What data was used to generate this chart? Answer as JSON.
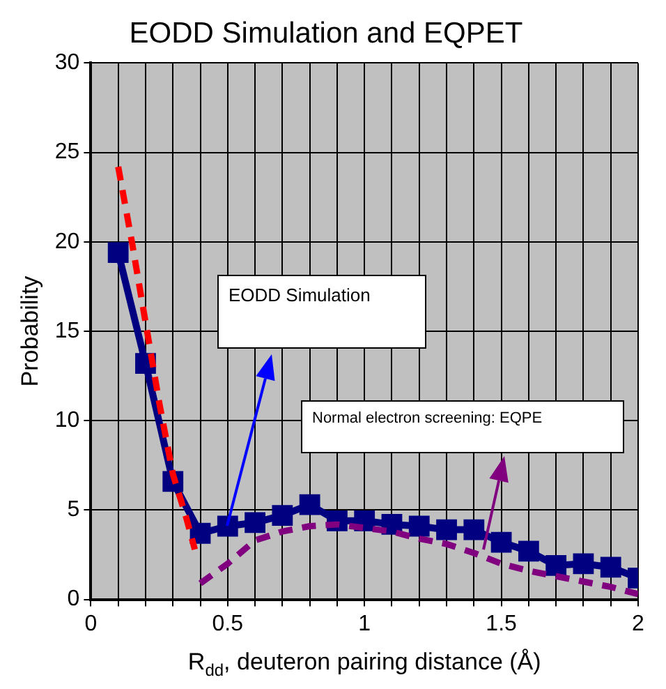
{
  "chart_data": {
    "type": "line",
    "title": "EODD Simulation and EQPET",
    "xlabel": "R$_{dd}$, deuteron pairing distance (Å)",
    "ylabel": "Probability",
    "xlim": [
      0,
      2
    ],
    "ylim": [
      0,
      30
    ],
    "xticks": [
      0,
      {
        "value": 0.1,
        "label": null
      },
      {
        "value": 0.2,
        "label": null
      },
      {
        "value": 0.3,
        "label": null
      },
      {
        "value": 0.4,
        "label": null
      },
      0.5,
      {
        "value": 0.6,
        "label": null
      },
      {
        "value": 0.7,
        "label": null
      },
      {
        "value": 0.8,
        "label": null
      },
      {
        "value": 0.9,
        "label": null
      },
      1,
      {
        "value": 1.1,
        "label": null
      },
      {
        "value": 1.2,
        "label": null
      },
      {
        "value": 1.3,
        "label": null
      },
      {
        "value": 1.4,
        "label": null
      },
      1.5,
      {
        "value": 1.6,
        "label": null
      },
      {
        "value": 1.7,
        "label": null
      },
      {
        "value": 1.8,
        "label": null
      },
      {
        "value": 1.9,
        "label": null
      },
      2
    ],
    "yticks": [
      0,
      5,
      10,
      15,
      20,
      25,
      30
    ],
    "grid": true,
    "legend": false,
    "series": [
      {
        "color": "#ff0000",
        "line_style": "dashed",
        "marker": "none",
        "x": [
          0.1,
          0.15,
          0.2,
          0.25,
          0.3,
          0.35,
          0.38
        ],
        "values": [
          24.2,
          20,
          15.5,
          11,
          7,
          4.5,
          2.8
        ]
      },
      {
        "color": "#800080",
        "line_style": "dashed",
        "marker": "none",
        "x": [
          0.4,
          0.5,
          0.6,
          0.7,
          0.8,
          0.9,
          1.0,
          1.1,
          1.2,
          1.3,
          1.4,
          1.5,
          1.6,
          1.7,
          1.8,
          1.9,
          2.0
        ],
        "values": [
          0.9,
          2,
          3.3,
          3.8,
          4.1,
          4.2,
          4.0,
          3.8,
          3.4,
          3.1,
          2.6,
          2.0,
          1.6,
          1.3,
          1.0,
          0.7,
          0.3
        ]
      },
      {
        "color": "#000080",
        "line_style": "solid",
        "marker": "square",
        "x": [
          0.1,
          0.2,
          0.3,
          0.4,
          0.5,
          0.6,
          0.7,
          0.8,
          0.9,
          1.0,
          1.1,
          1.2,
          1.3,
          1.4,
          1.5,
          1.6,
          1.7,
          1.8,
          1.9,
          2.0
        ],
        "values": [
          19.4,
          13.2,
          6.6,
          3.7,
          4.1,
          4.3,
          4.7,
          5.3,
          4.4,
          4.4,
          4.2,
          4.1,
          3.9,
          3.9,
          3.2,
          2.7,
          1.9,
          2.0,
          1.8,
          1.2
        ]
      }
    ],
    "annotations": [
      "EODD Simulation",
      "Normal electron screening: EQPE"
    ]
  }
}
